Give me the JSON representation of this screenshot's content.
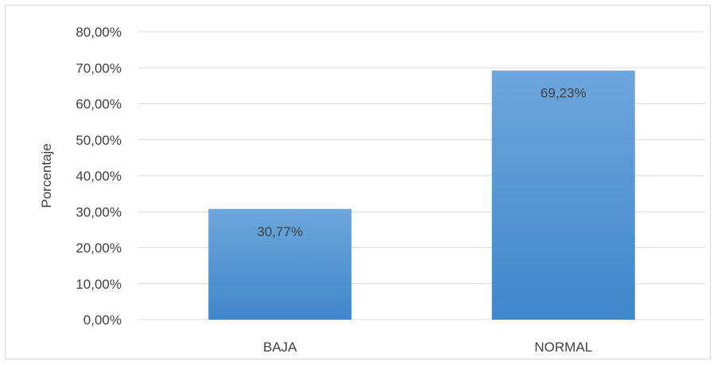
{
  "chart_data": {
    "type": "bar",
    "categories": [
      "BAJA",
      "NORMAL"
    ],
    "values": [
      30.77,
      69.23
    ],
    "data_labels": [
      "30,77%",
      "69,23%"
    ],
    "ylabel": "Porcentaje",
    "xlabel": "",
    "ylim": [
      0,
      80
    ],
    "yticks": [
      0,
      10,
      20,
      30,
      40,
      50,
      60,
      70,
      80
    ],
    "ytick_labels": [
      "0,00%",
      "10,00%",
      "20,00%",
      "30,00%",
      "40,00%",
      "50,00%",
      "60,00%",
      "70,00%",
      "80,00%"
    ],
    "grid": true,
    "legend": "none",
    "colors": {
      "bar_top": "#6ea6dc",
      "bar_bottom": "#3f87cb",
      "grid": "#d9d9d9",
      "text": "#404040",
      "border": "#d9d9d9"
    }
  }
}
